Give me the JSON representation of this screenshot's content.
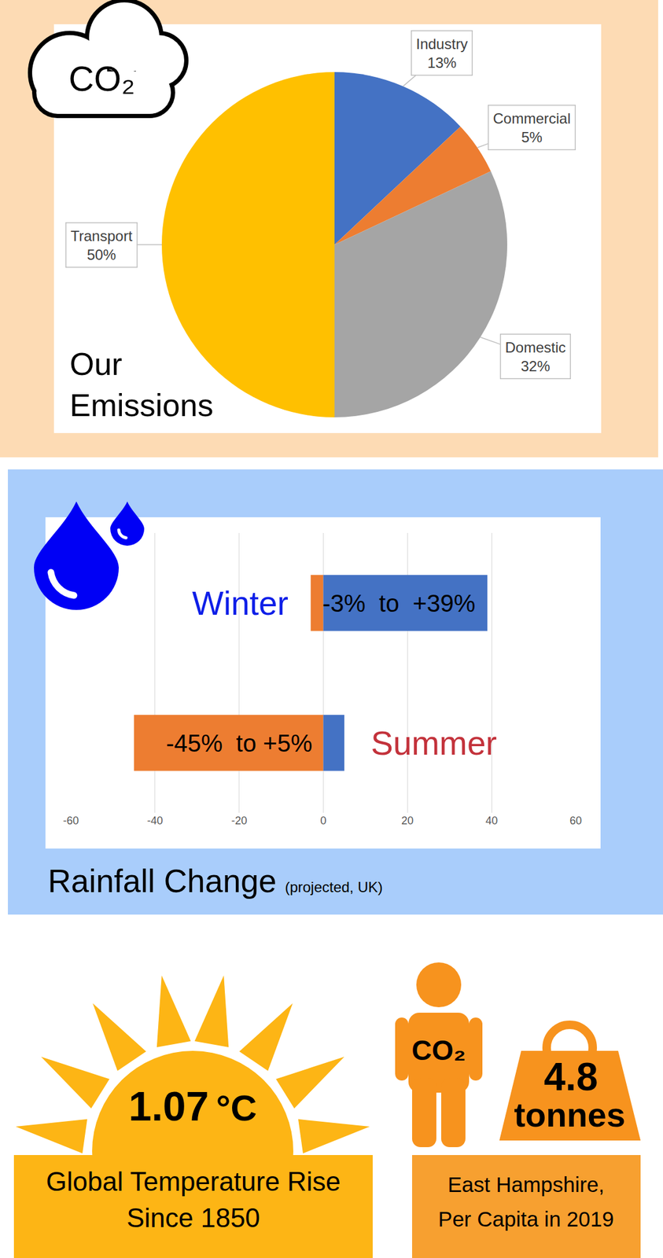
{
  "chart_data": [
    {
      "type": "pie",
      "title": "Our Emissions",
      "categories": [
        "Industry",
        "Commercial",
        "Domestic",
        "Transport"
      ],
      "values": [
        13,
        5,
        32,
        50
      ],
      "value_labels": [
        "13%",
        "5%",
        "32%",
        "50%"
      ],
      "colors": [
        "#4472C4",
        "#ED7D31",
        "#A5A5A5",
        "#FFC000"
      ],
      "data_labels": true
    },
    {
      "type": "bar",
      "orientation": "horizontal",
      "title": "Rainfall Change",
      "subtitle": "(projected, UK)",
      "categories": [
        "Winter",
        "Summer"
      ],
      "series": [
        {
          "color": "#ED7D31",
          "values": [
            -3,
            -45
          ]
        },
        {
          "color": "#4472C4",
          "values": [
            39,
            5
          ]
        }
      ],
      "annotations": [
        "-3%  to  +39%",
        "-45%  to +5%"
      ],
      "xlim": [
        -60,
        60
      ],
      "xticks": [
        -60,
        -40,
        -20,
        0,
        20,
        40,
        60
      ],
      "grid": true,
      "tick_labels": "x"
    }
  ],
  "emissions_icon": "CO₂",
  "stats": [
    {
      "value": 1.07,
      "unit": "°C",
      "label": [
        "Global Temperature Rise",
        "Since 1850"
      ]
    },
    {
      "icon_label": "CO₂",
      "value": 4.8,
      "unit": "tonnes",
      "label": [
        "East Hampshire,",
        "Per Capita in 2019"
      ]
    }
  ]
}
